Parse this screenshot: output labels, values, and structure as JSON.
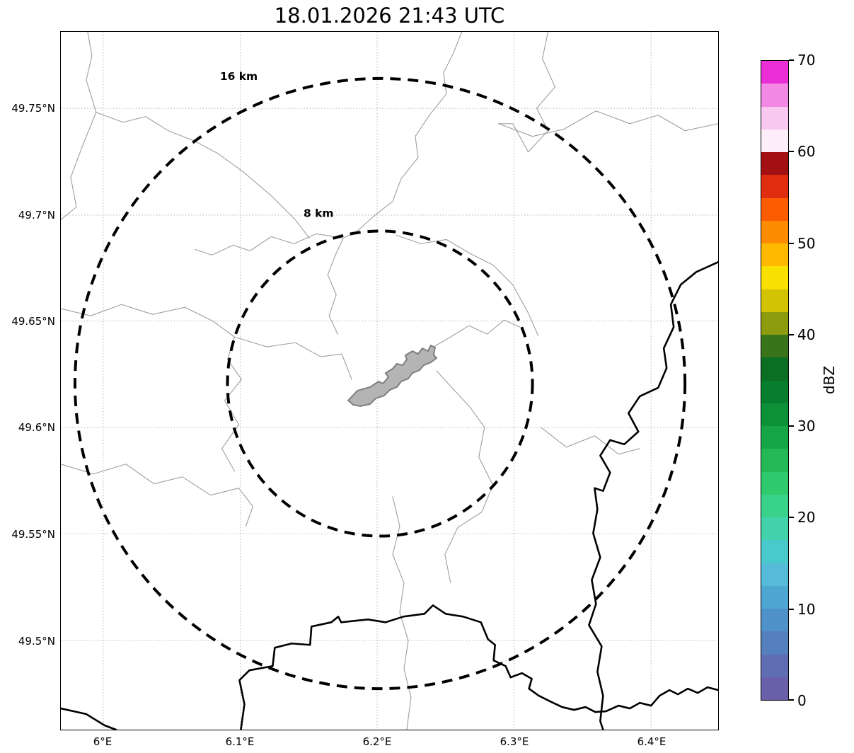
{
  "title": "18.01.2026 21:43 UTC",
  "map": {
    "range_rings": [
      {
        "label": "16 km",
        "radius_km": 16
      },
      {
        "label": "8 km",
        "radius_km": 8
      }
    ],
    "x_axis": {
      "ticks": [
        {
          "value": 6.0,
          "label": "6°E"
        },
        {
          "value": 6.1,
          "label": "6.1°E"
        },
        {
          "value": 6.2,
          "label": "6.2°E"
        },
        {
          "value": 6.3,
          "label": "6.3°E"
        },
        {
          "value": 6.4,
          "label": "6.4°E"
        }
      ]
    },
    "y_axis": {
      "ticks": [
        {
          "value": 49.75,
          "label": "49.75°N"
        },
        {
          "value": 49.7,
          "label": "49.7°N"
        },
        {
          "value": 49.65,
          "label": "49.65°N"
        },
        {
          "value": 49.6,
          "label": "49.6°N"
        },
        {
          "value": 49.55,
          "label": "49.55°N"
        },
        {
          "value": 49.5,
          "label": "49.5°N"
        }
      ]
    },
    "feature_colors": {
      "country_border": "#000000",
      "admin_boundary": "#9e9e9e",
      "airport_fill": "#b4b4b4",
      "airport_outline": "#7d7d7d",
      "gridline": "#b3b3b3"
    }
  },
  "colorbar": {
    "label": "dBZ",
    "min": 0,
    "max": 70,
    "ticks": [
      {
        "value": 70,
        "label": "70"
      },
      {
        "value": 60,
        "label": "60"
      },
      {
        "value": 50,
        "label": "50"
      },
      {
        "value": 40,
        "label": "40"
      },
      {
        "value": 30,
        "label": "30"
      },
      {
        "value": 20,
        "label": "20"
      },
      {
        "value": 10,
        "label": "10"
      },
      {
        "value": 0,
        "label": "0"
      }
    ],
    "colors_low_to_high": [
      "#6a60aa",
      "#5f6db3",
      "#567fbe",
      "#4f92c9",
      "#4ea6d2",
      "#55bbd9",
      "#49c9c9",
      "#41d2ab",
      "#39d28b",
      "#2fca6d",
      "#23b957",
      "#16a546",
      "#0c9138",
      "#067e2d",
      "#0b6e22",
      "#3a741a",
      "#8c9c0e",
      "#d2c404",
      "#f8e000",
      "#ffb900",
      "#ff8c00",
      "#fb5c00",
      "#e02d10",
      "#a31014",
      "#fdeefa",
      "#f9c8f0",
      "#f287e4",
      "#ea2fd6"
    ]
  },
  "chart_data": {
    "type": "map",
    "title": "18.01.2026 21:43 UTC",
    "colorbar_label": "dBZ",
    "colorbar_range": [
      0,
      70
    ],
    "colorbar_tick_step": 10,
    "range_rings_km": [
      8,
      16
    ],
    "ring_center": {
      "lon_e": 6.2,
      "lat_n": 49.62
    },
    "lon_ticks_deg_e": [
      6.0,
      6.1,
      6.2,
      6.3,
      6.4
    ],
    "lat_ticks_deg_n": [
      49.5,
      49.55,
      49.6,
      49.65,
      49.7,
      49.75
    ]
  }
}
